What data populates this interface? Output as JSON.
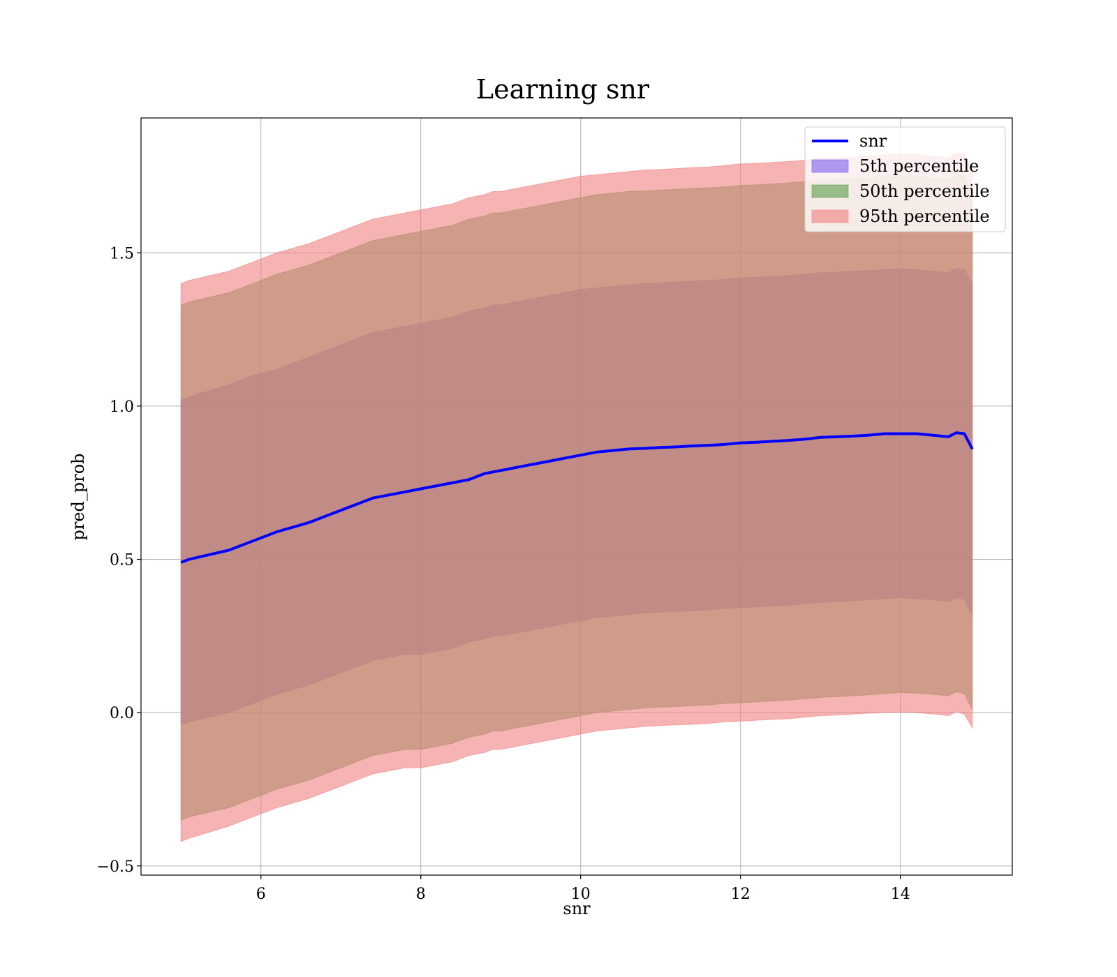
{
  "chart_data": {
    "type": "area",
    "title": "Learning snr",
    "xlabel": "snr",
    "ylabel": "pred_prob",
    "xlim": [
      4.5,
      15.4
    ],
    "ylim": [
      -0.53,
      1.94
    ],
    "x_ticks": [
      6,
      8,
      10,
      12,
      14
    ],
    "x_tick_labels": [
      "6",
      "8",
      "10",
      "12",
      "14"
    ],
    "y_ticks": [
      -0.5,
      0.0,
      0.5,
      1.0,
      1.5
    ],
    "y_tick_labels": [
      "−0.5",
      "0.0",
      "0.5",
      "1.0",
      "1.5"
    ],
    "grid": true,
    "legend_position": "top-right",
    "x": [
      5.0,
      5.1,
      5.6,
      5.9,
      6.2,
      6.6,
      6.8,
      7.0,
      7.2,
      7.4,
      7.6,
      7.8,
      8.0,
      8.2,
      8.4,
      8.6,
      8.8,
      8.9,
      9.0,
      9.2,
      9.4,
      9.6,
      9.8,
      10.0,
      10.2,
      10.4,
      10.6,
      10.8,
      11.0,
      11.2,
      11.4,
      11.6,
      11.8,
      12.0,
      12.2,
      12.4,
      12.6,
      12.8,
      13.0,
      13.2,
      13.4,
      13.6,
      13.8,
      14.0,
      14.2,
      14.4,
      14.6,
      14.7,
      14.8,
      14.9
    ],
    "series": [
      {
        "name": "snr",
        "kind": "line",
        "color": "#0000ff",
        "values": [
          0.49,
          0.5,
          0.53,
          0.56,
          0.59,
          0.62,
          0.64,
          0.66,
          0.68,
          0.7,
          0.71,
          0.72,
          0.73,
          0.74,
          0.75,
          0.76,
          0.78,
          0.785,
          0.79,
          0.8,
          0.81,
          0.82,
          0.83,
          0.84,
          0.85,
          0.855,
          0.86,
          0.862,
          0.865,
          0.867,
          0.87,
          0.872,
          0.875,
          0.88,
          0.882,
          0.885,
          0.888,
          0.892,
          0.898,
          0.9,
          0.902,
          0.905,
          0.91,
          0.91,
          0.91,
          0.905,
          0.9,
          0.913,
          0.91,
          0.86
        ]
      },
      {
        "name": "5th percentile",
        "kind": "band",
        "color": "#7b5df0",
        "lower": [
          -0.04,
          -0.03,
          0.0,
          0.03,
          0.06,
          0.09,
          0.11,
          0.13,
          0.15,
          0.17,
          0.18,
          0.19,
          0.19,
          0.2,
          0.21,
          0.23,
          0.24,
          0.25,
          0.25,
          0.26,
          0.27,
          0.28,
          0.29,
          0.3,
          0.31,
          0.315,
          0.32,
          0.325,
          0.328,
          0.33,
          0.332,
          0.335,
          0.34,
          0.342,
          0.345,
          0.348,
          0.35,
          0.355,
          0.36,
          0.362,
          0.365,
          0.368,
          0.372,
          0.375,
          0.372,
          0.368,
          0.362,
          0.375,
          0.37,
          0.32
        ],
        "upper": [
          1.02,
          1.03,
          1.07,
          1.1,
          1.12,
          1.16,
          1.18,
          1.2,
          1.22,
          1.24,
          1.25,
          1.26,
          1.27,
          1.28,
          1.29,
          1.31,
          1.32,
          1.33,
          1.33,
          1.34,
          1.35,
          1.36,
          1.37,
          1.38,
          1.385,
          1.39,
          1.395,
          1.4,
          1.402,
          1.405,
          1.408,
          1.41,
          1.413,
          1.418,
          1.42,
          1.423,
          1.426,
          1.43,
          1.435,
          1.437,
          1.44,
          1.442,
          1.445,
          1.448,
          1.445,
          1.44,
          1.435,
          1.45,
          1.445,
          1.4
        ]
      },
      {
        "name": "50th percentile",
        "kind": "band",
        "color": "#5a9e4b",
        "lower": [
          -0.35,
          -0.34,
          -0.31,
          -0.28,
          -0.25,
          -0.22,
          -0.2,
          -0.18,
          -0.16,
          -0.14,
          -0.13,
          -0.12,
          -0.12,
          -0.11,
          -0.1,
          -0.08,
          -0.07,
          -0.06,
          -0.06,
          -0.05,
          -0.04,
          -0.03,
          -0.02,
          -0.01,
          0.0,
          0.005,
          0.01,
          0.015,
          0.018,
          0.02,
          0.023,
          0.025,
          0.03,
          0.032,
          0.035,
          0.038,
          0.041,
          0.045,
          0.05,
          0.052,
          0.055,
          0.058,
          0.062,
          0.066,
          0.064,
          0.06,
          0.055,
          0.068,
          0.062,
          0.01
        ],
        "upper": [
          1.33,
          1.34,
          1.37,
          1.4,
          1.43,
          1.46,
          1.48,
          1.5,
          1.52,
          1.54,
          1.55,
          1.56,
          1.57,
          1.58,
          1.59,
          1.61,
          1.62,
          1.63,
          1.63,
          1.64,
          1.65,
          1.66,
          1.67,
          1.68,
          1.69,
          1.695,
          1.7,
          1.702,
          1.705,
          1.707,
          1.71,
          1.712,
          1.715,
          1.72,
          1.722,
          1.725,
          1.728,
          1.732,
          1.737,
          1.74,
          1.742,
          1.745,
          1.75,
          1.752,
          1.75,
          1.745,
          1.74,
          1.755,
          1.75,
          1.7
        ]
      },
      {
        "name": "95th percentile",
        "kind": "band",
        "color": "#f08080",
        "lower": [
          -0.42,
          -0.41,
          -0.37,
          -0.34,
          -0.31,
          -0.28,
          -0.26,
          -0.24,
          -0.22,
          -0.2,
          -0.19,
          -0.18,
          -0.18,
          -0.17,
          -0.16,
          -0.14,
          -0.13,
          -0.12,
          -0.12,
          -0.11,
          -0.1,
          -0.09,
          -0.08,
          -0.07,
          -0.06,
          -0.055,
          -0.05,
          -0.045,
          -0.042,
          -0.04,
          -0.038,
          -0.035,
          -0.03,
          -0.028,
          -0.025,
          -0.022,
          -0.02,
          -0.015,
          -0.01,
          -0.008,
          -0.005,
          -0.002,
          0.0,
          0.002,
          0.0,
          -0.004,
          -0.01,
          0.003,
          -0.005,
          -0.05
        ],
        "upper": [
          1.4,
          1.41,
          1.44,
          1.47,
          1.5,
          1.53,
          1.55,
          1.57,
          1.59,
          1.61,
          1.62,
          1.63,
          1.64,
          1.65,
          1.66,
          1.68,
          1.69,
          1.7,
          1.7,
          1.71,
          1.72,
          1.73,
          1.74,
          1.75,
          1.755,
          1.76,
          1.765,
          1.77,
          1.772,
          1.775,
          1.778,
          1.78,
          1.785,
          1.79,
          1.792,
          1.795,
          1.798,
          1.802,
          1.807,
          1.81,
          1.812,
          1.815,
          1.82,
          1.822,
          1.82,
          1.815,
          1.81,
          1.825,
          1.82,
          1.77
        ]
      }
    ]
  }
}
